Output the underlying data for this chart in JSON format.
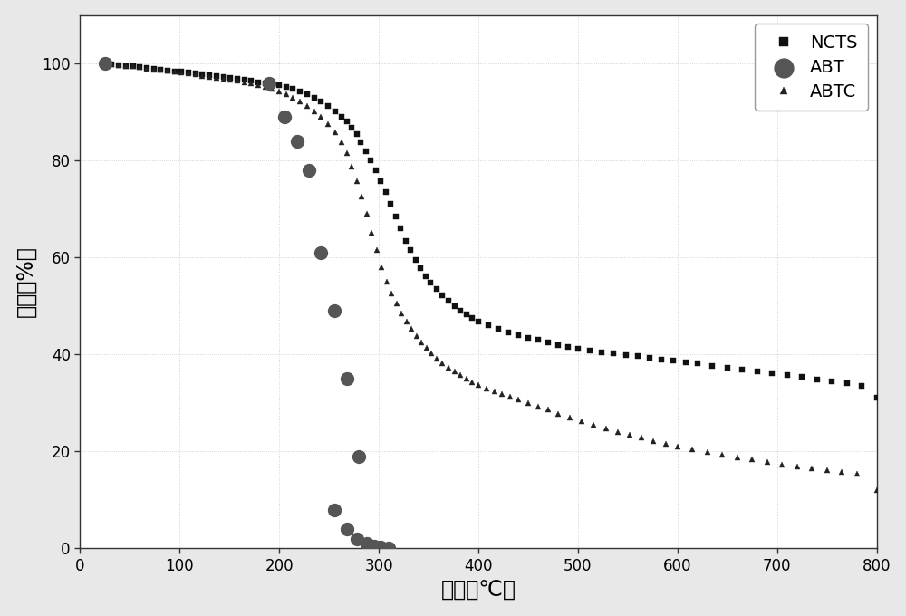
{
  "xlabel": "温度（℃）",
  "ylabel": "质量（%）",
  "xlim": [
    0,
    800
  ],
  "ylim": [
    0,
    110
  ],
  "yticks": [
    0,
    20,
    40,
    60,
    80,
    100
  ],
  "xticks": [
    0,
    100,
    200,
    300,
    400,
    500,
    600,
    700,
    800
  ],
  "bg_color": "#ffffff",
  "ax_bg": "#f0f0f0",
  "grid_color": "#bbbbbb",
  "NCTS": {
    "color": "#111111",
    "marker": "s",
    "markersize": 4.5,
    "x": [
      25,
      32,
      39,
      46,
      53,
      60,
      67,
      74,
      81,
      88,
      95,
      102,
      109,
      116,
      123,
      130,
      137,
      144,
      151,
      158,
      165,
      172,
      179,
      186,
      193,
      200,
      207,
      214,
      221,
      228,
      235,
      242,
      249,
      256,
      263,
      268,
      273,
      278,
      282,
      287,
      292,
      297,
      302,
      307,
      312,
      317,
      322,
      327,
      332,
      337,
      342,
      347,
      352,
      358,
      364,
      370,
      376,
      382,
      388,
      394,
      400,
      410,
      420,
      430,
      440,
      450,
      460,
      470,
      480,
      490,
      500,
      512,
      524,
      536,
      548,
      560,
      572,
      584,
      596,
      608,
      620,
      635,
      650,
      665,
      680,
      695,
      710,
      725,
      740,
      755,
      770,
      785,
      800
    ],
    "y": [
      100,
      99.8,
      99.7,
      99.5,
      99.4,
      99.2,
      99.1,
      98.9,
      98.8,
      98.6,
      98.4,
      98.3,
      98.1,
      97.9,
      97.8,
      97.6,
      97.4,
      97.2,
      97.0,
      96.8,
      96.6,
      96.4,
      96.2,
      96.0,
      95.8,
      95.5,
      95.2,
      94.8,
      94.3,
      93.7,
      93.0,
      92.2,
      91.3,
      90.2,
      89.0,
      88.0,
      86.8,
      85.4,
      83.8,
      82.0,
      80.0,
      78.0,
      75.8,
      73.5,
      71.0,
      68.5,
      66.0,
      63.5,
      61.5,
      59.5,
      57.8,
      56.2,
      54.8,
      53.5,
      52.2,
      51.0,
      50.0,
      49.0,
      48.2,
      47.5,
      46.8,
      46.0,
      45.2,
      44.5,
      44.0,
      43.5,
      43.0,
      42.5,
      42.0,
      41.6,
      41.2,
      40.8,
      40.5,
      40.2,
      39.9,
      39.6,
      39.3,
      39.0,
      38.7,
      38.4,
      38.1,
      37.7,
      37.3,
      36.9,
      36.5,
      36.1,
      35.7,
      35.3,
      34.9,
      34.5,
      34.1,
      33.5,
      31.0
    ]
  },
  "ABT": {
    "color": "#555555",
    "marker": "o",
    "markersize": 10,
    "x": [
      25,
      190,
      205,
      218,
      230,
      242,
      255,
      268,
      280
    ],
    "y": [
      100,
      96,
      89,
      84,
      78,
      61,
      49,
      35,
      19
    ]
  },
  "ABT_low": {
    "color": "#555555",
    "marker": "o",
    "markersize": 10,
    "x": [
      255,
      268,
      278,
      288,
      295,
      302,
      310
    ],
    "y": [
      8,
      4,
      2,
      1,
      0.5,
      0.2,
      0
    ]
  },
  "ABTC": {
    "color": "#222222",
    "marker": "^",
    "markersize": 4.0,
    "x": [
      25,
      32,
      39,
      46,
      53,
      60,
      67,
      74,
      81,
      88,
      95,
      102,
      109,
      116,
      123,
      130,
      137,
      144,
      151,
      158,
      165,
      172,
      179,
      186,
      193,
      200,
      207,
      214,
      221,
      228,
      235,
      242,
      249,
      256,
      263,
      268,
      273,
      278,
      283,
      288,
      293,
      298,
      303,
      308,
      313,
      318,
      323,
      328,
      333,
      338,
      343,
      348,
      353,
      358,
      364,
      370,
      376,
      382,
      388,
      394,
      400,
      408,
      416,
      424,
      432,
      440,
      450,
      460,
      470,
      480,
      492,
      504,
      516,
      528,
      540,
      552,
      564,
      576,
      588,
      600,
      615,
      630,
      645,
      660,
      675,
      690,
      705,
      720,
      735,
      750,
      765,
      780,
      800
    ],
    "y": [
      100,
      99.8,
      99.7,
      99.5,
      99.4,
      99.2,
      99.0,
      98.8,
      98.7,
      98.5,
      98.3,
      98.1,
      97.9,
      97.7,
      97.5,
      97.3,
      97.1,
      96.9,
      96.7,
      96.5,
      96.2,
      95.9,
      95.6,
      95.2,
      94.8,
      94.3,
      93.7,
      93.0,
      92.2,
      91.3,
      90.2,
      89.0,
      87.5,
      85.8,
      83.8,
      81.5,
      78.8,
      75.8,
      72.5,
      69.0,
      65.0,
      61.5,
      58.0,
      55.0,
      52.5,
      50.5,
      48.5,
      46.8,
      45.2,
      43.8,
      42.5,
      41.3,
      40.2,
      39.2,
      38.2,
      37.3,
      36.5,
      35.7,
      35.0,
      34.3,
      33.7,
      33.0,
      32.4,
      31.8,
      31.2,
      30.7,
      30.0,
      29.3,
      28.6,
      27.8,
      27.0,
      26.2,
      25.4,
      24.7,
      24.0,
      23.4,
      22.8,
      22.2,
      21.6,
      21.0,
      20.4,
      19.8,
      19.3,
      18.8,
      18.3,
      17.8,
      17.3,
      16.9,
      16.5,
      16.1,
      15.7,
      15.3,
      12.0
    ]
  }
}
